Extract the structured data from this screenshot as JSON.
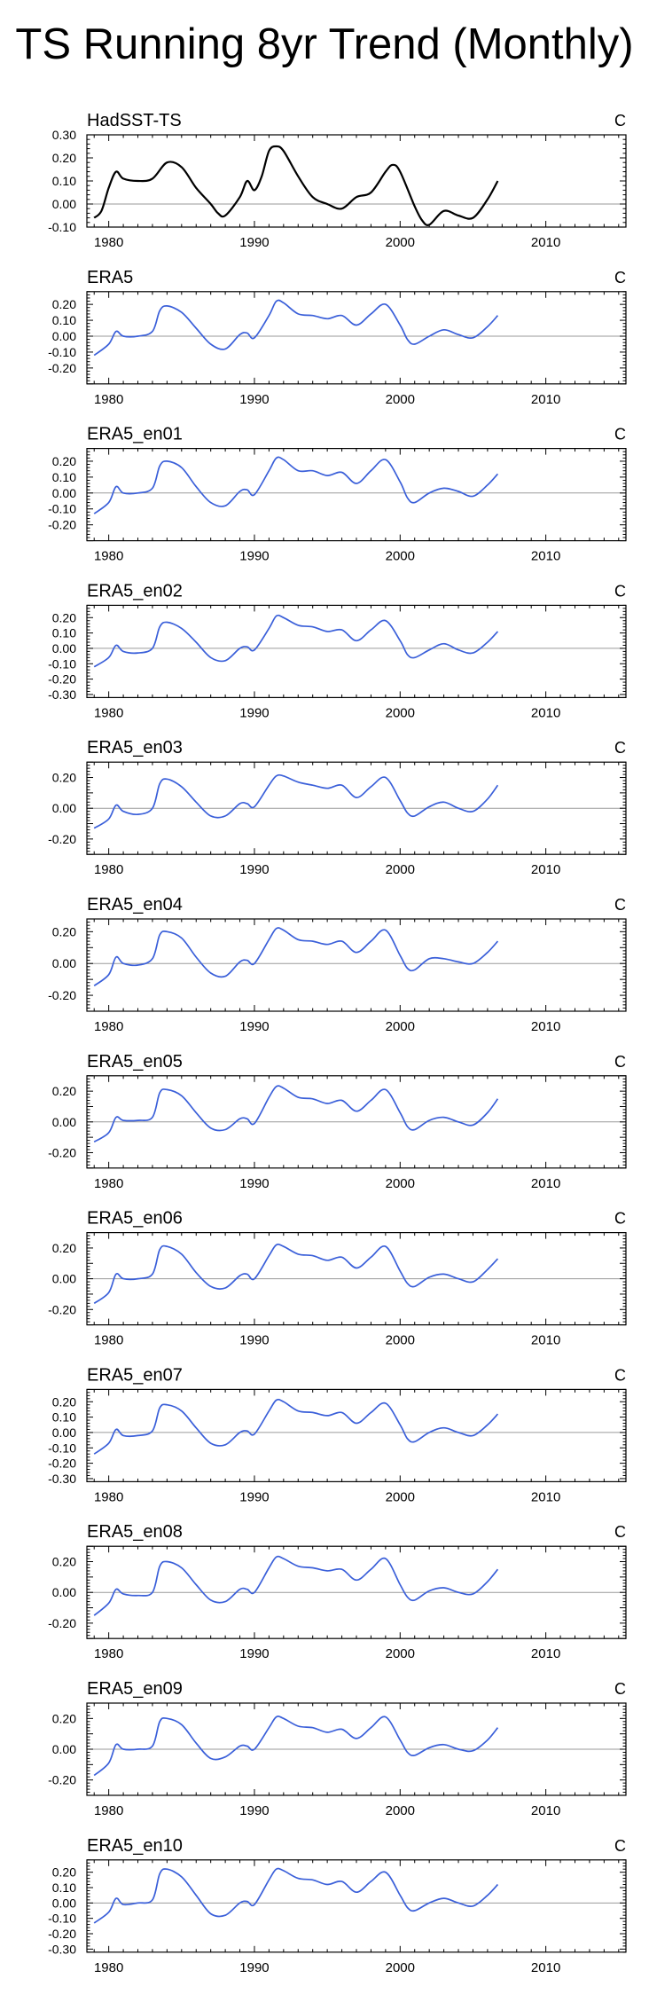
{
  "title": "TS Running 8yr Trend (Monthly)",
  "chart_data": [
    {
      "type": "line",
      "title": "HadSST-TS",
      "units": "C",
      "color": "#000000",
      "xlim": [
        1978.5,
        2015.5
      ],
      "ylim": [
        -0.1,
        0.3
      ],
      "yticks": [
        "0.30",
        "0.20",
        "0.10",
        "0.00",
        "-0.10"
      ],
      "xticks": [
        "1980",
        "1990",
        "2000",
        "2010"
      ],
      "reference_line": 0.0,
      "x": [
        1979,
        1979.5,
        1980,
        1980.5,
        1981,
        1982,
        1983,
        1984,
        1985,
        1986,
        1987,
        1987.5,
        1988,
        1989,
        1989.5,
        1990,
        1990.5,
        1991,
        1991.5,
        1992,
        1993,
        1994,
        1995,
        1996,
        1997,
        1998,
        1999,
        1999.5,
        2000,
        2001,
        2001.5,
        2002,
        2003,
        2004,
        2005,
        2006,
        2006.7
      ],
      "y": [
        -0.06,
        -0.03,
        0.07,
        0.14,
        0.11,
        0.1,
        0.11,
        0.18,
        0.16,
        0.07,
        0.0,
        -0.04,
        -0.05,
        0.03,
        0.1,
        0.06,
        0.12,
        0.23,
        0.25,
        0.23,
        0.12,
        0.03,
        0.0,
        -0.02,
        0.03,
        0.05,
        0.14,
        0.17,
        0.14,
        -0.01,
        -0.07,
        -0.09,
        -0.03,
        -0.05,
        -0.06,
        0.02,
        0.1
      ]
    },
    {
      "type": "line",
      "title": "ERA5",
      "units": "C",
      "color": "#3a5fd9",
      "xlim": [
        1978.5,
        2015.5
      ],
      "ylim": [
        -0.3,
        0.28
      ],
      "yticks": [
        "0.20",
        "0.10",
        "0.00",
        "-0.10",
        "-0.20"
      ],
      "xticks": [
        "1980",
        "1990",
        "2000",
        "2010"
      ],
      "reference_line": 0.0,
      "x": [
        1979,
        1980,
        1980.5,
        1981,
        1982,
        1983,
        1983.5,
        1984,
        1985,
        1986,
        1987,
        1988,
        1989,
        1989.5,
        1990,
        1991,
        1991.5,
        1992,
        1993,
        1994,
        1995,
        1996,
        1997,
        1998,
        1999,
        2000,
        2000.5,
        2001,
        2002,
        2003,
        2004,
        2005,
        2006,
        2006.7
      ],
      "y": [
        -0.12,
        -0.05,
        0.03,
        0.0,
        0.0,
        0.03,
        0.16,
        0.19,
        0.15,
        0.05,
        -0.05,
        -0.08,
        0.01,
        0.02,
        -0.01,
        0.13,
        0.22,
        0.21,
        0.14,
        0.13,
        0.11,
        0.13,
        0.07,
        0.14,
        0.2,
        0.07,
        -0.02,
        -0.05,
        0.0,
        0.04,
        0.01,
        -0.01,
        0.06,
        0.13
      ]
    },
    {
      "type": "line",
      "title": "ERA5_en01",
      "units": "C",
      "color": "#3a5fd9",
      "xlim": [
        1978.5,
        2015.5
      ],
      "ylim": [
        -0.3,
        0.28
      ],
      "yticks": [
        "0.20",
        "0.10",
        "0.00",
        "-0.10",
        "-0.20"
      ],
      "xticks": [
        "1980",
        "1990",
        "2000",
        "2010"
      ],
      "reference_line": 0.0,
      "x": [
        1979,
        1980,
        1980.5,
        1981,
        1982,
        1983,
        1983.5,
        1984,
        1985,
        1986,
        1987,
        1988,
        1989,
        1989.5,
        1990,
        1991,
        1991.5,
        1992,
        1993,
        1994,
        1995,
        1996,
        1997,
        1998,
        1999,
        2000,
        2000.5,
        2001,
        2002,
        2003,
        2004,
        2005,
        2006,
        2006.7
      ],
      "y": [
        -0.13,
        -0.06,
        0.04,
        0.0,
        0.0,
        0.03,
        0.17,
        0.2,
        0.16,
        0.04,
        -0.06,
        -0.08,
        0.01,
        0.02,
        -0.01,
        0.14,
        0.22,
        0.21,
        0.14,
        0.14,
        0.11,
        0.13,
        0.06,
        0.14,
        0.21,
        0.07,
        -0.03,
        -0.06,
        0.0,
        0.03,
        0.01,
        -0.02,
        0.05,
        0.12
      ]
    },
    {
      "type": "line",
      "title": "ERA5_en02",
      "units": "C",
      "color": "#3a5fd9",
      "xlim": [
        1978.5,
        2015.5
      ],
      "ylim": [
        -0.32,
        0.28
      ],
      "yticks": [
        "0.20",
        "0.10",
        "0.00",
        "-0.10",
        "-0.20",
        "-0.30"
      ],
      "xticks": [
        "1980",
        "1990",
        "2000",
        "2010"
      ],
      "reference_line": 0.0,
      "x": [
        1979,
        1980,
        1980.5,
        1981,
        1982,
        1983,
        1983.5,
        1984,
        1985,
        1986,
        1987,
        1988,
        1989,
        1989.5,
        1990,
        1991,
        1991.5,
        1992,
        1993,
        1994,
        1995,
        1996,
        1997,
        1998,
        1999,
        2000,
        2000.5,
        2001,
        2002,
        2003,
        2004,
        2005,
        2006,
        2006.7
      ],
      "y": [
        -0.12,
        -0.06,
        0.02,
        -0.02,
        -0.03,
        0.0,
        0.14,
        0.17,
        0.13,
        0.04,
        -0.06,
        -0.08,
        0.0,
        0.01,
        -0.01,
        0.13,
        0.21,
        0.2,
        0.15,
        0.14,
        0.11,
        0.12,
        0.05,
        0.12,
        0.18,
        0.05,
        -0.04,
        -0.06,
        -0.01,
        0.03,
        -0.01,
        -0.03,
        0.04,
        0.11
      ]
    },
    {
      "type": "line",
      "title": "ERA5_en03",
      "units": "C",
      "color": "#3a5fd9",
      "xlim": [
        1978.5,
        2015.5
      ],
      "ylim": [
        -0.3,
        0.3
      ],
      "yticks": [
        "0.20",
        "0.00",
        "-0.20"
      ],
      "xticks": [
        "1980",
        "1990",
        "2000",
        "2010"
      ],
      "reference_line": 0.0,
      "x": [
        1979,
        1980,
        1980.5,
        1981,
        1982,
        1983,
        1983.5,
        1984,
        1985,
        1986,
        1987,
        1988,
        1989,
        1989.5,
        1990,
        1991,
        1991.5,
        1992,
        1993,
        1994,
        1995,
        1996,
        1997,
        1998,
        1999,
        2000,
        2000.5,
        2001,
        2002,
        2003,
        2004,
        2005,
        2006,
        2006.7
      ],
      "y": [
        -0.13,
        -0.07,
        0.02,
        -0.02,
        -0.04,
        0.0,
        0.16,
        0.19,
        0.14,
        0.04,
        -0.05,
        -0.05,
        0.03,
        0.03,
        0.01,
        0.15,
        0.21,
        0.21,
        0.17,
        0.15,
        0.13,
        0.15,
        0.07,
        0.14,
        0.2,
        0.05,
        -0.03,
        -0.05,
        0.01,
        0.04,
        0.0,
        -0.02,
        0.06,
        0.15
      ]
    },
    {
      "type": "line",
      "title": "ERA5_en04",
      "units": "C",
      "color": "#3a5fd9",
      "xlim": [
        1978.5,
        2015.5
      ],
      "ylim": [
        -0.3,
        0.28
      ],
      "yticks": [
        "0.20",
        "0.00",
        "-0.20"
      ],
      "xticks": [
        "1980",
        "1990",
        "2000",
        "2010"
      ],
      "reference_line": 0.0,
      "x": [
        1979,
        1980,
        1980.5,
        1981,
        1982,
        1983,
        1983.5,
        1984,
        1985,
        1986,
        1987,
        1988,
        1989,
        1989.5,
        1990,
        1991,
        1991.5,
        1992,
        1993,
        1994,
        1995,
        1996,
        1997,
        1998,
        1999,
        2000,
        2000.5,
        2001,
        2002,
        2003,
        2004,
        2005,
        2006,
        2006.7
      ],
      "y": [
        -0.14,
        -0.07,
        0.04,
        0.0,
        -0.01,
        0.03,
        0.18,
        0.2,
        0.16,
        0.04,
        -0.06,
        -0.08,
        0.01,
        0.02,
        0.0,
        0.15,
        0.22,
        0.21,
        0.15,
        0.14,
        0.12,
        0.14,
        0.07,
        0.14,
        0.21,
        0.05,
        -0.03,
        -0.04,
        0.03,
        0.03,
        0.01,
        0.0,
        0.07,
        0.14
      ]
    },
    {
      "type": "line",
      "title": "ERA5_en05",
      "units": "C",
      "color": "#3a5fd9",
      "xlim": [
        1978.5,
        2015.5
      ],
      "ylim": [
        -0.3,
        0.3
      ],
      "yticks": [
        "0.20",
        "0.00",
        "-0.20"
      ],
      "xticks": [
        "1980",
        "1990",
        "2000",
        "2010"
      ],
      "reference_line": 0.0,
      "x": [
        1979,
        1980,
        1980.5,
        1981,
        1982,
        1983,
        1983.5,
        1984,
        1985,
        1986,
        1987,
        1988,
        1989,
        1989.5,
        1990,
        1991,
        1991.5,
        1992,
        1993,
        1994,
        1995,
        1996,
        1997,
        1998,
        1999,
        2000,
        2000.5,
        2001,
        2002,
        2003,
        2004,
        2005,
        2006,
        2006.7
      ],
      "y": [
        -0.13,
        -0.07,
        0.03,
        0.01,
        0.01,
        0.03,
        0.19,
        0.21,
        0.17,
        0.06,
        -0.04,
        -0.05,
        0.02,
        0.02,
        -0.01,
        0.16,
        0.23,
        0.22,
        0.16,
        0.15,
        0.12,
        0.14,
        0.07,
        0.14,
        0.21,
        0.06,
        -0.03,
        -0.05,
        0.01,
        0.03,
        0.0,
        -0.02,
        0.06,
        0.15
      ]
    },
    {
      "type": "line",
      "title": "ERA5_en06",
      "units": "C",
      "color": "#3a5fd9",
      "xlim": [
        1978.5,
        2015.5
      ],
      "ylim": [
        -0.3,
        0.3
      ],
      "yticks": [
        "0.20",
        "0.00",
        "-0.20"
      ],
      "xticks": [
        "1980",
        "1990",
        "2000",
        "2010"
      ],
      "reference_line": 0.0,
      "x": [
        1979,
        1980,
        1980.5,
        1981,
        1982,
        1983,
        1983.5,
        1984,
        1985,
        1986,
        1987,
        1988,
        1989,
        1989.5,
        1990,
        1991,
        1991.5,
        1992,
        1993,
        1994,
        1995,
        1996,
        1997,
        1998,
        1999,
        2000,
        2000.5,
        2001,
        2002,
        2003,
        2004,
        2005,
        2006,
        2006.7
      ],
      "y": [
        -0.16,
        -0.09,
        0.03,
        0.0,
        0.0,
        0.03,
        0.19,
        0.21,
        0.16,
        0.04,
        -0.05,
        -0.06,
        0.02,
        0.03,
        0.0,
        0.15,
        0.22,
        0.21,
        0.16,
        0.15,
        0.12,
        0.14,
        0.07,
        0.14,
        0.21,
        0.05,
        -0.03,
        -0.05,
        0.01,
        0.03,
        0.0,
        -0.02,
        0.06,
        0.13
      ]
    },
    {
      "type": "line",
      "title": "ERA5_en07",
      "units": "C",
      "color": "#3a5fd9",
      "xlim": [
        1978.5,
        2015.5
      ],
      "ylim": [
        -0.32,
        0.28
      ],
      "yticks": [
        "0.20",
        "0.10",
        "0.00",
        "-0.10",
        "-0.20",
        "-0.30"
      ],
      "xticks": [
        "1980",
        "1990",
        "2000",
        "2010"
      ],
      "reference_line": 0.0,
      "x": [
        1979,
        1980,
        1980.5,
        1981,
        1982,
        1983,
        1983.5,
        1984,
        1985,
        1986,
        1987,
        1988,
        1989,
        1989.5,
        1990,
        1991,
        1991.5,
        1992,
        1993,
        1994,
        1995,
        1996,
        1997,
        1998,
        1999,
        2000,
        2000.5,
        2001,
        2002,
        2003,
        2004,
        2005,
        2006,
        2006.7
      ],
      "y": [
        -0.14,
        -0.07,
        0.02,
        -0.02,
        -0.02,
        0.01,
        0.16,
        0.18,
        0.14,
        0.03,
        -0.07,
        -0.08,
        0.0,
        0.01,
        -0.01,
        0.14,
        0.21,
        0.2,
        0.14,
        0.13,
        0.11,
        0.13,
        0.06,
        0.13,
        0.19,
        0.05,
        -0.04,
        -0.06,
        0.0,
        0.03,
        0.0,
        -0.02,
        0.05,
        0.12
      ]
    },
    {
      "type": "line",
      "title": "ERA5_en08",
      "units": "C",
      "color": "#3a5fd9",
      "xlim": [
        1978.5,
        2015.5
      ],
      "ylim": [
        -0.3,
        0.3
      ],
      "yticks": [
        "0.20",
        "0.00",
        "-0.20"
      ],
      "xticks": [
        "1980",
        "1990",
        "2000",
        "2010"
      ],
      "reference_line": 0.0,
      "x": [
        1979,
        1980,
        1980.5,
        1981,
        1982,
        1983,
        1983.5,
        1984,
        1985,
        1986,
        1987,
        1988,
        1989,
        1989.5,
        1990,
        1991,
        1991.5,
        1992,
        1993,
        1994,
        1995,
        1996,
        1997,
        1998,
        1999,
        2000,
        2000.5,
        2001,
        2002,
        2003,
        2004,
        2005,
        2006,
        2006.7
      ],
      "y": [
        -0.15,
        -0.07,
        0.02,
        -0.01,
        -0.02,
        0.0,
        0.17,
        0.2,
        0.16,
        0.05,
        -0.05,
        -0.06,
        0.02,
        0.02,
        0.0,
        0.16,
        0.23,
        0.22,
        0.17,
        0.16,
        0.14,
        0.15,
        0.08,
        0.15,
        0.22,
        0.05,
        -0.03,
        -0.05,
        0.01,
        0.03,
        0.0,
        -0.01,
        0.07,
        0.15
      ]
    },
    {
      "type": "line",
      "title": "ERA5_en09",
      "units": "C",
      "color": "#3a5fd9",
      "xlim": [
        1978.5,
        2015.5
      ],
      "ylim": [
        -0.3,
        0.3
      ],
      "yticks": [
        "0.20",
        "0.00",
        "-0.20"
      ],
      "xticks": [
        "1980",
        "1990",
        "2000",
        "2010"
      ],
      "reference_line": 0.0,
      "x": [
        1979,
        1980,
        1980.5,
        1981,
        1982,
        1983,
        1983.5,
        1984,
        1985,
        1986,
        1987,
        1988,
        1989,
        1989.5,
        1990,
        1991,
        1991.5,
        1992,
        1993,
        1994,
        1995,
        1996,
        1997,
        1998,
        1999,
        2000,
        2000.5,
        2001,
        2002,
        2003,
        2004,
        2005,
        2006,
        2006.7
      ],
      "y": [
        -0.17,
        -0.09,
        0.03,
        0.0,
        0.0,
        0.02,
        0.18,
        0.2,
        0.16,
        0.04,
        -0.06,
        -0.05,
        0.02,
        0.02,
        0.0,
        0.14,
        0.21,
        0.2,
        0.15,
        0.14,
        0.11,
        0.13,
        0.07,
        0.14,
        0.21,
        0.06,
        -0.02,
        -0.04,
        0.01,
        0.03,
        0.0,
        -0.01,
        0.06,
        0.14
      ]
    },
    {
      "type": "line",
      "title": "ERA5_en10",
      "units": "C",
      "color": "#3a5fd9",
      "xlim": [
        1978.5,
        2015.5
      ],
      "ylim": [
        -0.32,
        0.28
      ],
      "yticks": [
        "0.20",
        "0.10",
        "0.00",
        "-0.10",
        "-0.20",
        "-0.30"
      ],
      "xticks": [
        "1980",
        "1990",
        "2000",
        "2010"
      ],
      "reference_line": 0.0,
      "x": [
        1979,
        1980,
        1980.5,
        1981,
        1982,
        1983,
        1983.5,
        1984,
        1985,
        1986,
        1987,
        1988,
        1989,
        1989.5,
        1990,
        1991,
        1991.5,
        1992,
        1993,
        1994,
        1995,
        1996,
        1997,
        1998,
        1999,
        2000,
        2000.5,
        2001,
        2002,
        2003,
        2004,
        2005,
        2006,
        2006.7
      ],
      "y": [
        -0.13,
        -0.06,
        0.03,
        -0.01,
        0.0,
        0.02,
        0.19,
        0.22,
        0.17,
        0.05,
        -0.07,
        -0.08,
        0.0,
        0.01,
        -0.01,
        0.15,
        0.22,
        0.21,
        0.16,
        0.15,
        0.12,
        0.14,
        0.07,
        0.14,
        0.2,
        0.05,
        -0.03,
        -0.05,
        0.0,
        0.03,
        0.0,
        -0.02,
        0.05,
        0.12
      ]
    }
  ]
}
